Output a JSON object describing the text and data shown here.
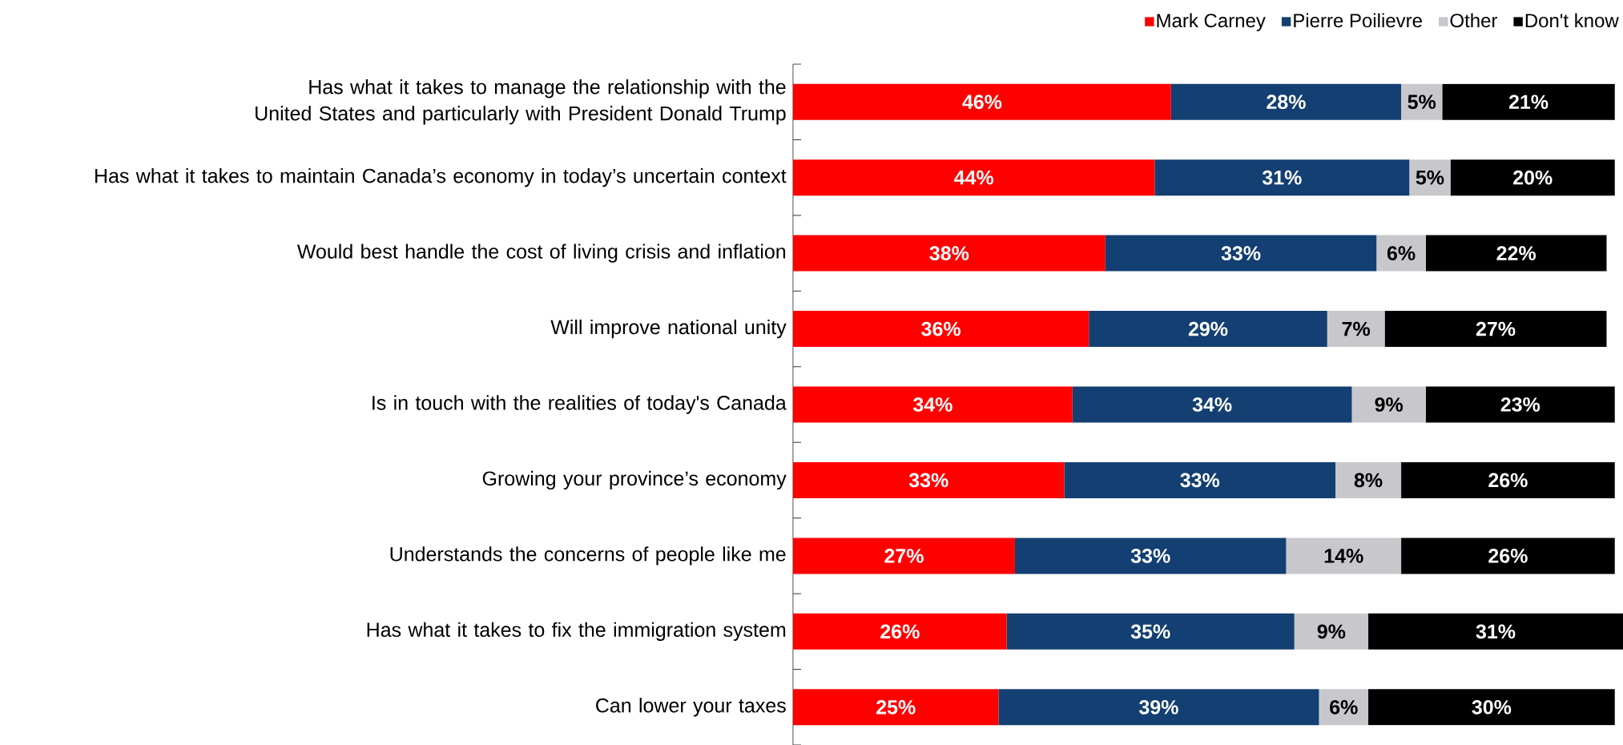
{
  "chart_data": {
    "type": "bar",
    "orientation": "horizontal",
    "stacked": true,
    "legend": "top right",
    "xlim": [
      0,
      101
    ],
    "tick_labels": "y",
    "categories": [
      "Has what it takes to manage the relationship with the United States and particularly with President Donald Trump",
      "Has what it takes to maintain Canada’s economy in today’s uncertain context",
      "Would best handle the cost of living crisis and inflation",
      "Will improve national unity",
      "Is in touch with the realities of today's Canada",
      "Growing your province’s economy",
      "Understands the concerns of people like me",
      "Has what it takes to fix the immigration system",
      "Can lower your taxes"
    ],
    "series": [
      {
        "name": "Mark Carney",
        "color": "#ff0000",
        "values": [
          46,
          44,
          38,
          36,
          34,
          33,
          27,
          26,
          25
        ],
        "value_labels": [
          "46%",
          "44%",
          "38%",
          "36%",
          "34%",
          "33%",
          "27%",
          "26%",
          "25%"
        ]
      },
      {
        "name": "Pierre Poilievre",
        "color": "#133f72",
        "values": [
          28,
          31,
          33,
          29,
          34,
          33,
          33,
          35,
          39
        ],
        "value_labels": [
          "28%",
          "31%",
          "33%",
          "29%",
          "34%",
          "33%",
          "33%",
          "35%",
          "39%"
        ]
      },
      {
        "name": "Other",
        "color": "#c8c8cc",
        "values": [
          5,
          5,
          6,
          7,
          9,
          8,
          14,
          9,
          6
        ],
        "value_labels": [
          "5%",
          "5%",
          "6%",
          "7%",
          "9%",
          "8%",
          "14%",
          "9%",
          "6%"
        ]
      },
      {
        "name": "Don't know",
        "color": "#000000",
        "values": [
          21,
          20,
          22,
          27,
          23,
          26,
          26,
          31,
          30
        ],
        "value_labels": [
          "21%",
          "20%",
          "22%",
          "27%",
          "23%",
          "26%",
          "26%",
          "31%",
          "30%"
        ]
      }
    ]
  }
}
